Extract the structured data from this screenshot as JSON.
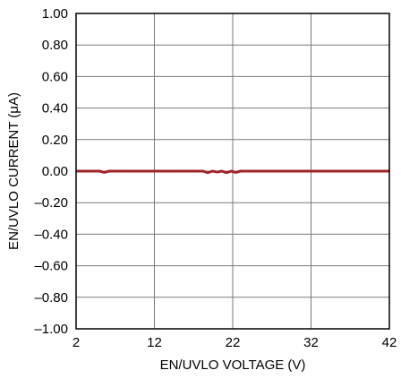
{
  "chart_data": {
    "type": "line",
    "title": "",
    "xlabel": "EN/UVLO VOLTAGE (V)",
    "ylabel": "EN/UVLO CURRENT (μA)",
    "xlim": [
      2,
      42
    ],
    "ylim": [
      -1.0,
      1.0
    ],
    "x_ticks": [
      2,
      12,
      22,
      32,
      42
    ],
    "x_tick_labels": [
      "2",
      "12",
      "22",
      "32",
      "42"
    ],
    "y_ticks": [
      1.0,
      0.8,
      0.6,
      0.4,
      0.2,
      0.0,
      -0.2,
      -0.4,
      -0.6,
      -0.8,
      -1.0
    ],
    "y_tick_labels": [
      "1.00",
      "0.80",
      "0.60",
      "0.40",
      "0.20",
      "0.00",
      "–0.20",
      "–0.40",
      "–0.60",
      "–0.80",
      "–1.00"
    ],
    "grid": true,
    "series": [
      {
        "color": "#a0232a",
        "x": [
          2,
          5.0,
          5.6,
          6.2,
          10,
          15,
          18.2,
          18.8,
          19.4,
          20.0,
          20.6,
          21.2,
          21.8,
          22.4,
          23.0,
          30,
          36,
          42
        ],
        "y": [
          0.0,
          0.0,
          -0.008,
          0.0,
          0.0,
          0.0,
          0.0,
          -0.01,
          0.0,
          -0.006,
          0.0,
          -0.01,
          0.0,
          -0.008,
          0.0,
          0.0,
          0.0,
          0.0
        ]
      }
    ]
  }
}
